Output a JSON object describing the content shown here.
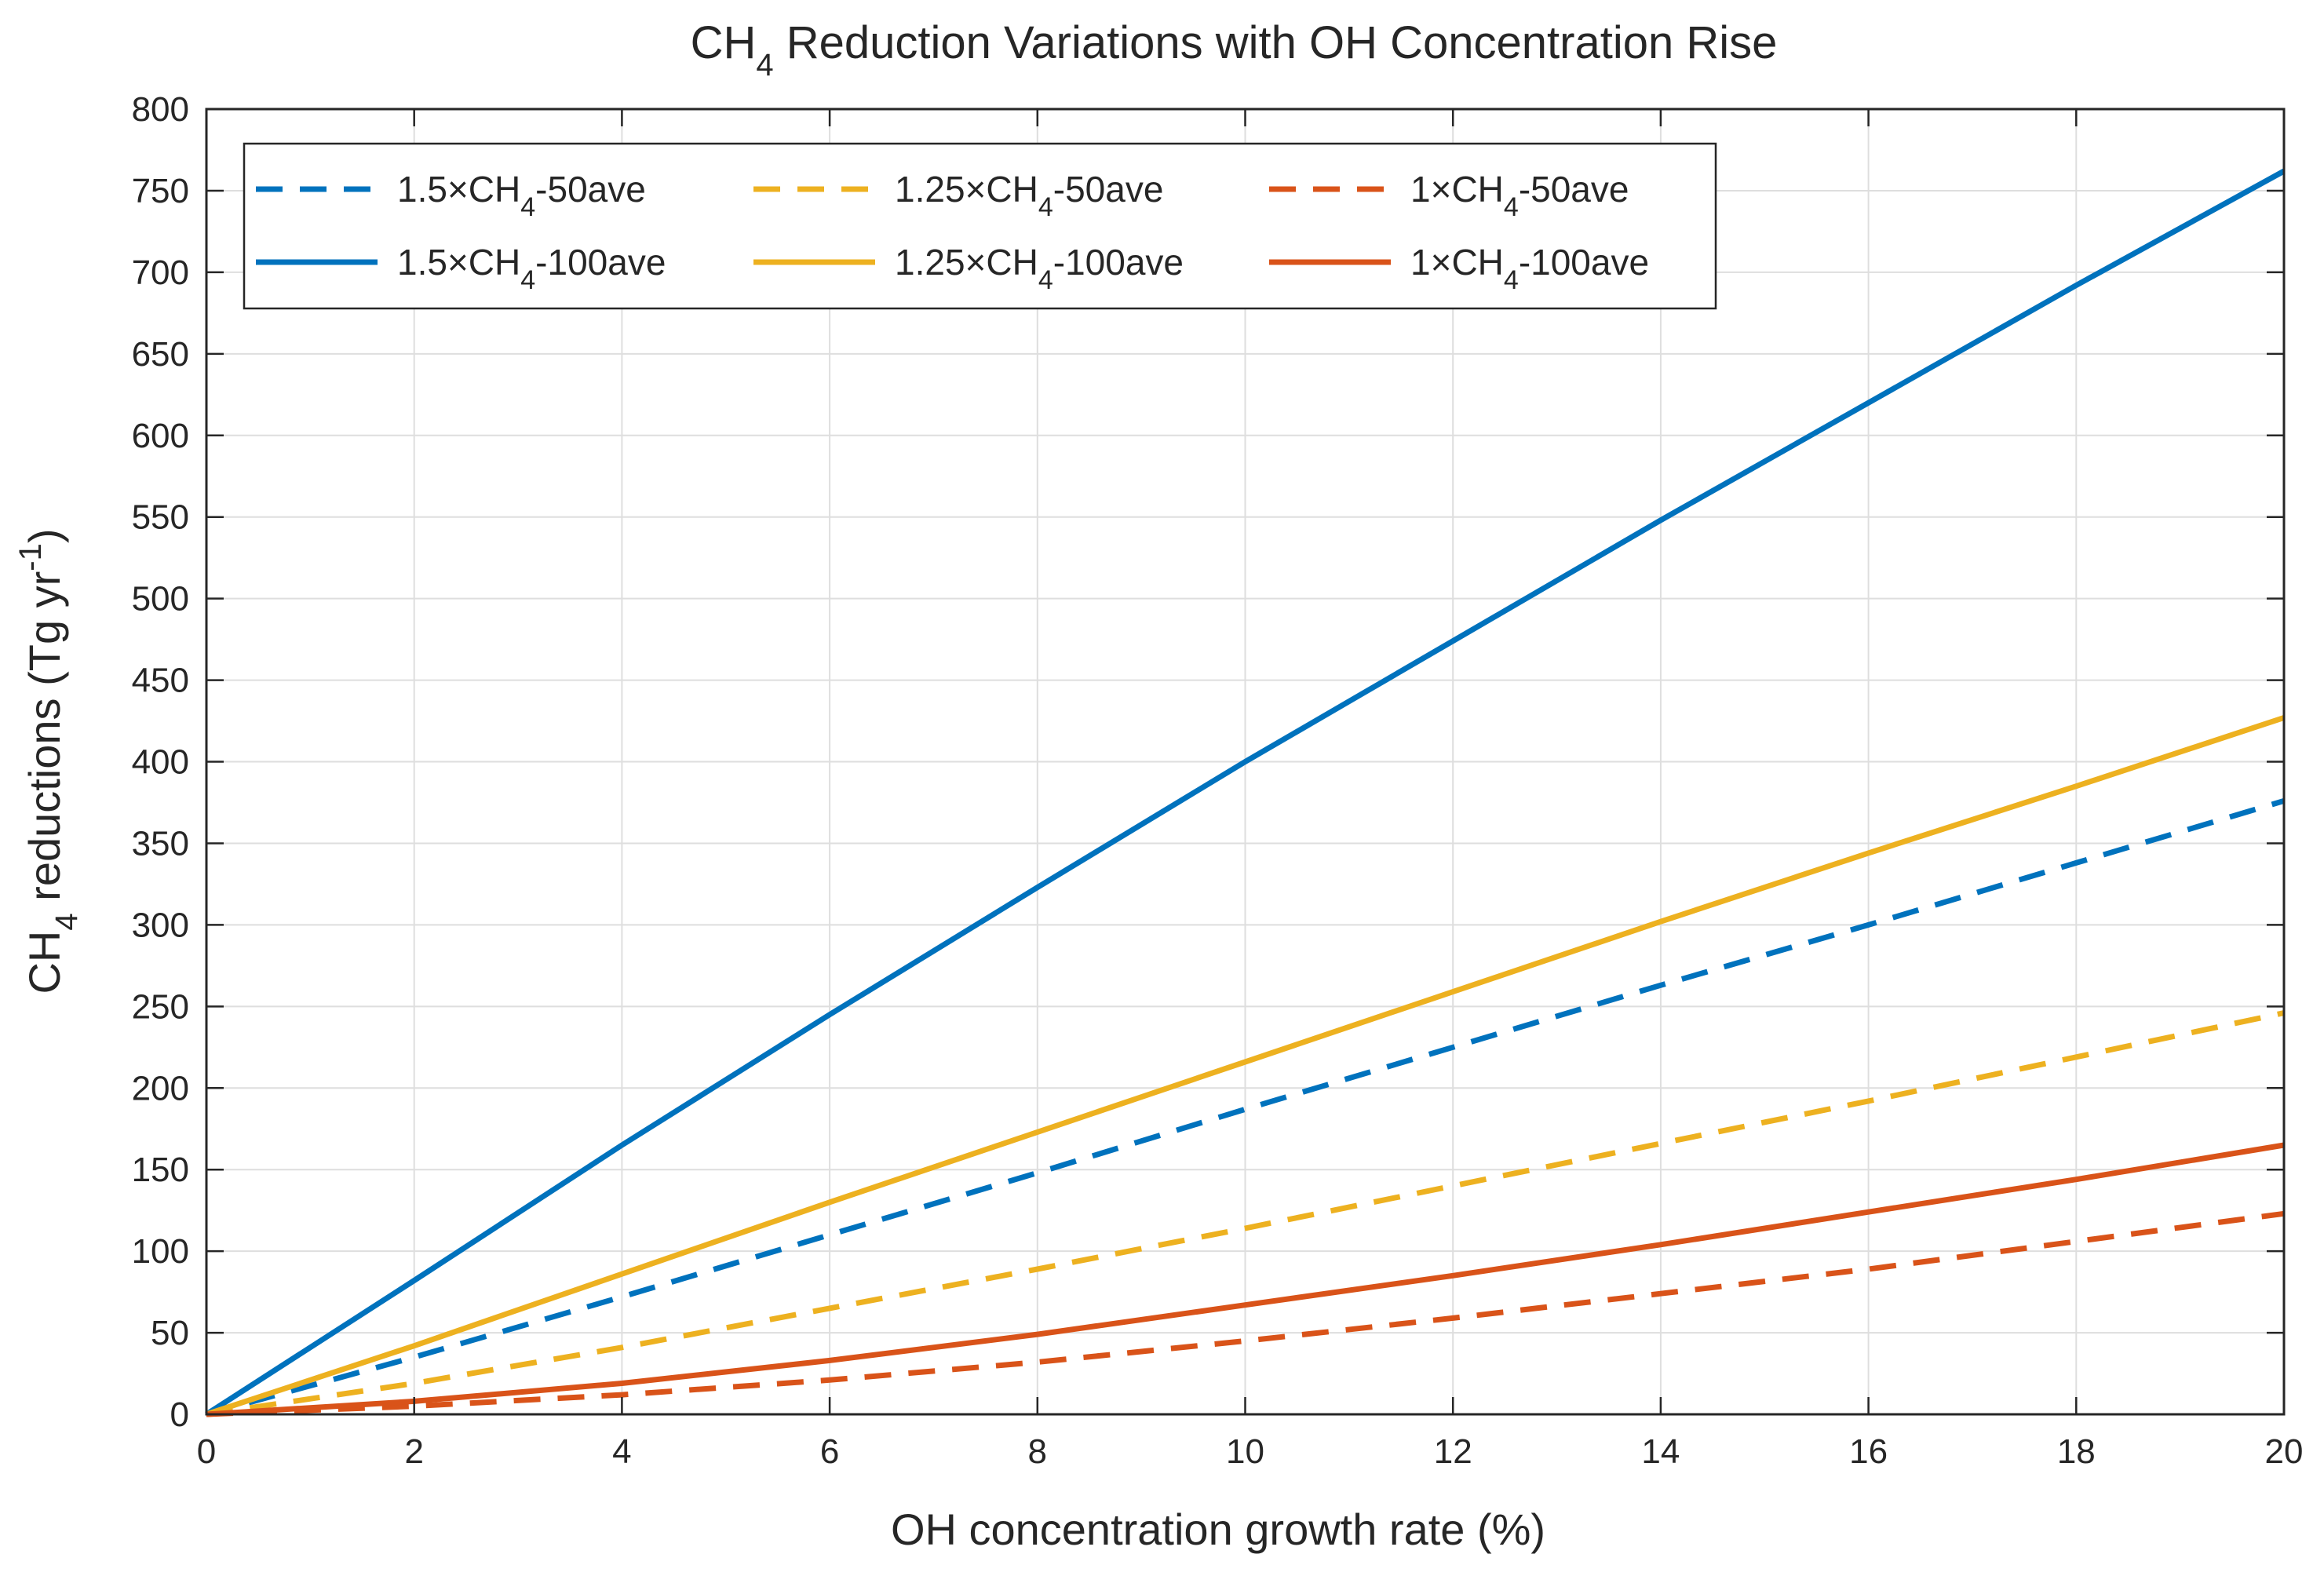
{
  "chart_data": {
    "type": "line",
    "title_main": "CH",
    "title_sub": "4",
    "title_rest": " Reduction Variations with OH Concentration Rise",
    "xlabel": "OH concentration growth rate (%)",
    "ylabel_main": "CH",
    "ylabel_sub": "4",
    "ylabel_rest": " reductions (Tg yr",
    "ylabel_sup": "-1",
    "ylabel_close": ")",
    "xlim": [
      0,
      20
    ],
    "ylim": [
      0,
      800
    ],
    "xticks": [
      "0",
      "2",
      "4",
      "6",
      "8",
      "10",
      "12",
      "14",
      "16",
      "18",
      "20"
    ],
    "yticks": [
      "0",
      "50",
      "100",
      "150",
      "200",
      "250",
      "300",
      "350",
      "400",
      "450",
      "500",
      "550",
      "600",
      "650",
      "700",
      "750",
      "800"
    ],
    "grid": true,
    "legend_position": "top-left",
    "x": [
      0,
      2,
      4,
      6,
      8,
      10,
      12,
      14,
      16,
      18,
      20
    ],
    "series": [
      {
        "name": "1.5×CH4-50ave",
        "label_a": "1.5×CH",
        "label_sub": "4",
        "label_b": "-50ave",
        "color": "#0072bd",
        "dashed": true,
        "values": [
          0,
          35,
          72,
          110,
          148,
          187,
          225,
          263,
          300,
          338,
          376
        ]
      },
      {
        "name": "1.25×CH4-50ave",
        "label_a": "1.25×CH",
        "label_sub": "4",
        "label_b": "-50ave",
        "color": "#edb120",
        "dashed": true,
        "values": [
          0,
          19,
          41,
          65,
          89,
          114,
          140,
          166,
          192,
          219,
          246
        ]
      },
      {
        "name": "1×CH4-50ave",
        "label_a": "1×CH",
        "label_sub": "4",
        "label_b": "-50ave",
        "color": "#d95319",
        "dashed": true,
        "values": [
          0,
          5,
          12,
          21,
          32,
          45,
          59,
          74,
          89,
          106,
          123
        ]
      },
      {
        "name": "1.5×CH4-100ave",
        "label_a": "1.5×CH",
        "label_sub": "4",
        "label_b": "-100ave",
        "color": "#0072bd",
        "dashed": false,
        "values": [
          0,
          82,
          165,
          245,
          323,
          400,
          474,
          548,
          620,
          692,
          762
        ]
      },
      {
        "name": "1.25×CH4-100ave",
        "label_a": "1.25×CH",
        "label_sub": "4",
        "label_b": "-100ave",
        "color": "#edb120",
        "dashed": false,
        "values": [
          0,
          42,
          86,
          130,
          173,
          216,
          259,
          302,
          344,
          385,
          427
        ]
      },
      {
        "name": "1×CH4-100ave",
        "label_a": "1×CH",
        "label_sub": "4",
        "label_b": "-100ave",
        "color": "#d95319",
        "dashed": false,
        "values": [
          0,
          8,
          19,
          33,
          49,
          67,
          85,
          104,
          124,
          144,
          165
        ]
      }
    ]
  }
}
